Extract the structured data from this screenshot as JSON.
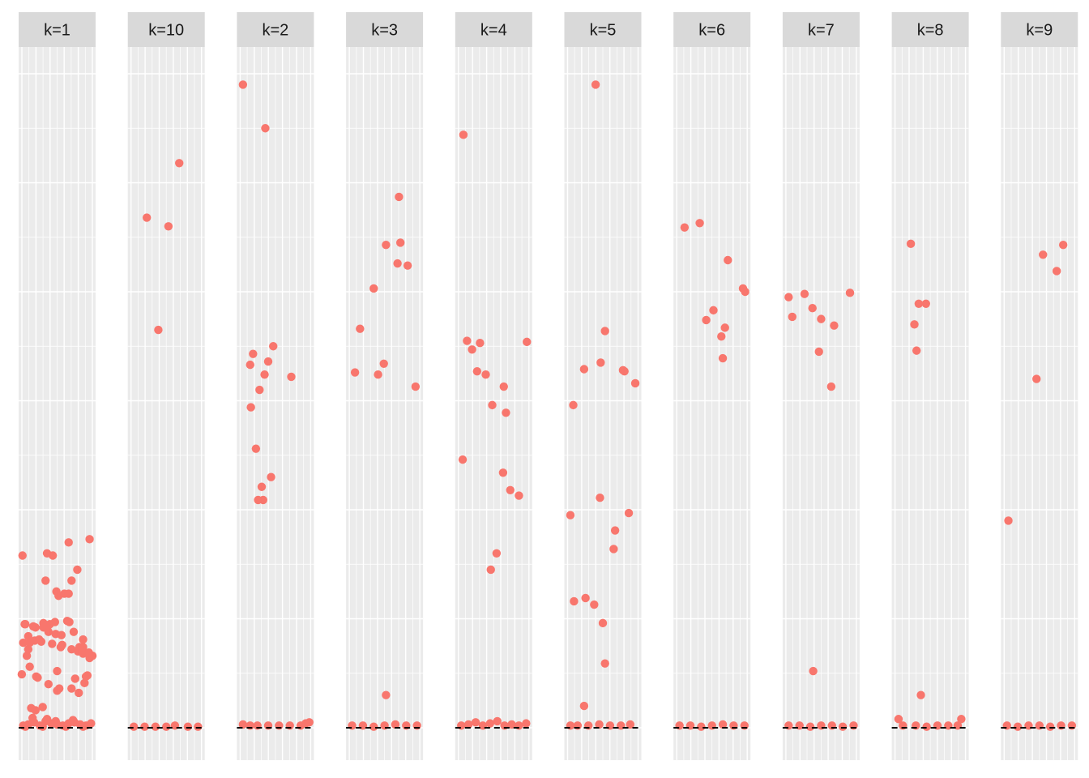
{
  "chart_data": {
    "type": "scatter",
    "title": "",
    "xlabel": "",
    "ylabel": "",
    "ylim": [
      -0.3,
      6.3
    ],
    "reference_line": {
      "y": 0,
      "style": "dashed"
    },
    "grid": true,
    "colors": {
      "point": "#F8766D",
      "panel": "#EBEBEB",
      "strip": "#D9D9D9",
      "grid": "#FFFFFF",
      "line": "#000000"
    },
    "facets": [
      {
        "label": "k=1",
        "points": [
          [
            0.12,
            0.56
          ],
          [
            0.36,
            1.6
          ],
          [
            0.44,
            1.58
          ],
          [
            0.95,
            1.73
          ],
          [
            0.66,
            1.7
          ],
          [
            0.7,
            1.35
          ],
          [
            0.34,
            1.35
          ],
          [
            0.52,
            1.21
          ],
          [
            0.78,
            1.45
          ],
          [
            0.49,
            1.25
          ],
          [
            0.02,
            1.58
          ],
          [
            0.05,
            0.95
          ],
          [
            0.14,
            0.18
          ],
          [
            0.2,
            0.16
          ],
          [
            0.6,
            1.23
          ],
          [
            0.06,
            0.95
          ],
          [
            0.4,
            0.95
          ],
          [
            0.73,
            0.88
          ],
          [
            0.86,
            0.81
          ],
          [
            0.31,
            0.92
          ],
          [
            0.66,
            1.23
          ],
          [
            0.48,
            0.86
          ],
          [
            0.03,
            0.78
          ],
          [
            0.1,
            0.84
          ],
          [
            0.19,
            0.8
          ],
          [
            0.28,
            0.79
          ],
          [
            0.43,
            0.77
          ],
          [
            0.57,
            0.76
          ],
          [
            0.7,
            0.72
          ],
          [
            0.79,
            0.7
          ],
          [
            0.86,
            0.68
          ],
          [
            0.95,
            0.64
          ],
          [
            0.25,
            0.81
          ],
          [
            0.12,
            0.78
          ],
          [
            0.38,
            0.88
          ],
          [
            0.67,
            0.97
          ],
          [
            0.92,
            0.48
          ],
          [
            0.01,
            0.49
          ],
          [
            0.8,
            0.32
          ],
          [
            0.23,
            0.46
          ],
          [
            0.5,
            0.34
          ],
          [
            0.5,
            0.52
          ],
          [
            0.3,
            0.19
          ],
          [
            0.21,
            0.47
          ],
          [
            0.38,
            0.94
          ],
          [
            0.17,
            0.93
          ],
          [
            0.86,
            0.74
          ],
          [
            0.75,
            0.45
          ],
          [
            0.56,
            0.85
          ],
          [
            0.9,
            0.47
          ],
          [
            0.08,
            0.66
          ],
          [
            0.99,
            0.66
          ],
          [
            0.53,
            0.36
          ],
          [
            0.38,
            0.4
          ],
          [
            0.7,
            0.36
          ],
          [
            0.88,
            0.41
          ],
          [
            0.2,
            0.92
          ],
          [
            0.64,
            0.98
          ],
          [
            0.31,
            0.96
          ],
          [
            0.47,
            0.97
          ],
          [
            0.1,
            0.72
          ],
          [
            0.55,
            0.74
          ],
          [
            0.81,
            0.74
          ],
          [
            0.94,
            0.69
          ],
          [
            0.03,
            0.02
          ],
          [
            0.1,
            0.03
          ],
          [
            0.18,
            0.05
          ],
          [
            0.26,
            0.02
          ],
          [
            0.34,
            0.06
          ],
          [
            0.42,
            0.04
          ],
          [
            0.5,
            0.03
          ],
          [
            0.58,
            0.02
          ],
          [
            0.66,
            0.04
          ],
          [
            0.74,
            0.05
          ],
          [
            0.82,
            0.03
          ],
          [
            0.9,
            0.02
          ],
          [
            0.97,
            0.04
          ],
          [
            0.06,
            0.01
          ],
          [
            0.3,
            0.01
          ],
          [
            0.62,
            0.01
          ],
          [
            0.86,
            0.01
          ],
          [
            0.16,
            0.09
          ],
          [
            0.36,
            0.08
          ],
          [
            0.72,
            0.07
          ],
          [
            0.48,
            0.06
          ]
        ]
      },
      {
        "label": "k=10",
        "points": [
          [
            0.68,
            5.18
          ],
          [
            0.23,
            4.68
          ],
          [
            0.53,
            4.6
          ],
          [
            0.39,
            3.65
          ],
          [
            0.05,
            0.01
          ],
          [
            0.2,
            0.01
          ],
          [
            0.35,
            0.01
          ],
          [
            0.5,
            0.01
          ],
          [
            0.62,
            0.02
          ],
          [
            0.8,
            0.01
          ],
          [
            0.94,
            0.01
          ]
        ]
      },
      {
        "label": "k=2",
        "points": [
          [
            0.05,
            5.9
          ],
          [
            0.36,
            5.5
          ],
          [
            0.19,
            3.43
          ],
          [
            0.47,
            3.5
          ],
          [
            0.15,
            3.33
          ],
          [
            0.4,
            3.36
          ],
          [
            0.72,
            3.22
          ],
          [
            0.35,
            3.24
          ],
          [
            0.28,
            3.1
          ],
          [
            0.16,
            2.94
          ],
          [
            0.23,
            2.56
          ],
          [
            0.44,
            2.3
          ],
          [
            0.31,
            2.21
          ],
          [
            0.26,
            2.09
          ],
          [
            0.33,
            2.09
          ],
          [
            0.05,
            0.03
          ],
          [
            0.15,
            0.02
          ],
          [
            0.25,
            0.02
          ],
          [
            0.4,
            0.02
          ],
          [
            0.55,
            0.02
          ],
          [
            0.7,
            0.02
          ],
          [
            0.85,
            0.02
          ],
          [
            0.92,
            0.04
          ],
          [
            0.97,
            0.05
          ]
        ]
      },
      {
        "label": "k=3",
        "points": [
          [
            0.7,
            4.87
          ],
          [
            0.52,
            4.43
          ],
          [
            0.72,
            4.45
          ],
          [
            0.68,
            4.26
          ],
          [
            0.82,
            4.24
          ],
          [
            0.35,
            4.03
          ],
          [
            0.16,
            3.66
          ],
          [
            0.09,
            3.26
          ],
          [
            0.49,
            3.34
          ],
          [
            0.41,
            3.24
          ],
          [
            0.93,
            3.13
          ],
          [
            0.52,
            0.3
          ],
          [
            0.05,
            0.02
          ],
          [
            0.2,
            0.02
          ],
          [
            0.35,
            0.01
          ],
          [
            0.5,
            0.02
          ],
          [
            0.65,
            0.03
          ],
          [
            0.8,
            0.02
          ],
          [
            0.95,
            0.02
          ]
        ]
      },
      {
        "label": "k=4",
        "points": [
          [
            0.08,
            5.44
          ],
          [
            0.13,
            3.55
          ],
          [
            0.2,
            3.47
          ],
          [
            0.31,
            3.53
          ],
          [
            0.96,
            3.54
          ],
          [
            0.27,
            3.27
          ],
          [
            0.39,
            3.24
          ],
          [
            0.64,
            3.13
          ],
          [
            0.48,
            2.96
          ],
          [
            0.67,
            2.89
          ],
          [
            0.07,
            2.46
          ],
          [
            0.63,
            2.34
          ],
          [
            0.73,
            2.18
          ],
          [
            0.85,
            2.13
          ],
          [
            0.54,
            1.6
          ],
          [
            0.46,
            1.45
          ],
          [
            0.05,
            0.02
          ],
          [
            0.15,
            0.03
          ],
          [
            0.25,
            0.05
          ],
          [
            0.35,
            0.02
          ],
          [
            0.45,
            0.04
          ],
          [
            0.55,
            0.06
          ],
          [
            0.65,
            0.02
          ],
          [
            0.75,
            0.03
          ],
          [
            0.85,
            0.02
          ],
          [
            0.95,
            0.04
          ]
        ]
      },
      {
        "label": "k=5",
        "points": [
          [
            0.4,
            5.9
          ],
          [
            0.53,
            3.64
          ],
          [
            0.47,
            3.35
          ],
          [
            0.24,
            3.29
          ],
          [
            0.78,
            3.28
          ],
          [
            0.8,
            3.27
          ],
          [
            0.95,
            3.16
          ],
          [
            0.09,
            2.96
          ],
          [
            0.46,
            2.11
          ],
          [
            0.86,
            1.97
          ],
          [
            0.05,
            1.95
          ],
          [
            0.67,
            1.81
          ],
          [
            0.65,
            1.64
          ],
          [
            0.1,
            1.16
          ],
          [
            0.26,
            1.19
          ],
          [
            0.38,
            1.13
          ],
          [
            0.5,
            0.96
          ],
          [
            0.53,
            0.59
          ],
          [
            0.24,
            0.2
          ],
          [
            0.05,
            0.02
          ],
          [
            0.15,
            0.02
          ],
          [
            0.3,
            0.02
          ],
          [
            0.45,
            0.03
          ],
          [
            0.6,
            0.02
          ],
          [
            0.75,
            0.02
          ],
          [
            0.88,
            0.03
          ]
        ]
      },
      {
        "label": "k=6",
        "points": [
          [
            0.12,
            4.59
          ],
          [
            0.33,
            4.63
          ],
          [
            0.72,
            4.29
          ],
          [
            0.93,
            4.03
          ],
          [
            0.96,
            4.0
          ],
          [
            0.52,
            3.83
          ],
          [
            0.42,
            3.74
          ],
          [
            0.68,
            3.67
          ],
          [
            0.63,
            3.59
          ],
          [
            0.65,
            3.39
          ],
          [
            0.05,
            0.02
          ],
          [
            0.2,
            0.02
          ],
          [
            0.35,
            0.01
          ],
          [
            0.5,
            0.02
          ],
          [
            0.65,
            0.03
          ],
          [
            0.8,
            0.02
          ],
          [
            0.95,
            0.02
          ]
        ]
      },
      {
        "label": "k=7",
        "points": [
          [
            0.05,
            3.95
          ],
          [
            0.27,
            3.98
          ],
          [
            0.38,
            3.85
          ],
          [
            0.1,
            3.77
          ],
          [
            0.5,
            3.75
          ],
          [
            0.68,
            3.69
          ],
          [
            0.9,
            3.99
          ],
          [
            0.47,
            3.45
          ],
          [
            0.64,
            3.13
          ],
          [
            0.39,
            0.52
          ],
          [
            0.05,
            0.02
          ],
          [
            0.2,
            0.02
          ],
          [
            0.35,
            0.01
          ],
          [
            0.5,
            0.02
          ],
          [
            0.65,
            0.02
          ],
          [
            0.8,
            0.01
          ],
          [
            0.95,
            0.02
          ]
        ]
      },
      {
        "label": "k=8",
        "points": [
          [
            0.23,
            4.44
          ],
          [
            0.34,
            3.89
          ],
          [
            0.44,
            3.89
          ],
          [
            0.28,
            3.7
          ],
          [
            0.31,
            3.46
          ],
          [
            0.37,
            0.3
          ],
          [
            0.06,
            0.08
          ],
          [
            0.93,
            0.08
          ],
          [
            0.12,
            0.02
          ],
          [
            0.3,
            0.02
          ],
          [
            0.45,
            0.01
          ],
          [
            0.6,
            0.02
          ],
          [
            0.75,
            0.02
          ],
          [
            0.88,
            0.02
          ]
        ]
      },
      {
        "label": "k=9",
        "points": [
          [
            0.55,
            4.34
          ],
          [
            0.83,
            4.43
          ],
          [
            0.74,
            4.19
          ],
          [
            0.46,
            3.2
          ],
          [
            0.07,
            1.9
          ],
          [
            0.05,
            0.02
          ],
          [
            0.2,
            0.01
          ],
          [
            0.35,
            0.02
          ],
          [
            0.5,
            0.02
          ],
          [
            0.65,
            0.01
          ],
          [
            0.8,
            0.02
          ],
          [
            0.95,
            0.02
          ]
        ]
      }
    ]
  }
}
